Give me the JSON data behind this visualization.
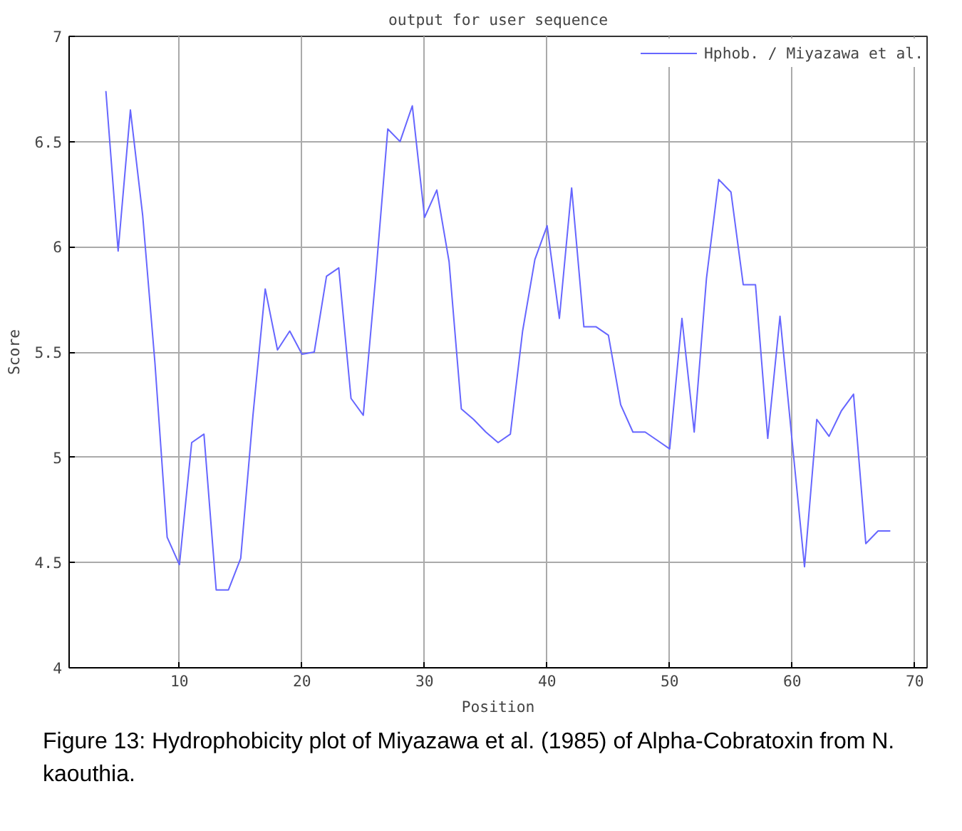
{
  "chart_data": {
    "type": "line",
    "title": "output for user sequence",
    "xlabel": "Position",
    "ylabel": "Score",
    "x": [
      4,
      5,
      6,
      7,
      8,
      9,
      10,
      11,
      12,
      13,
      14,
      15,
      16,
      17,
      18,
      19,
      20,
      21,
      22,
      23,
      24,
      25,
      26,
      27,
      28,
      29,
      30,
      31,
      32,
      33,
      34,
      35,
      36,
      37,
      38,
      39,
      40,
      41,
      42,
      43,
      44,
      45,
      46,
      47,
      48,
      49,
      50,
      51,
      52,
      53,
      54,
      55,
      56,
      57,
      58,
      59,
      60,
      61,
      62,
      63,
      64,
      65,
      66,
      67,
      68
    ],
    "series": [
      {
        "name": "Hphob. / Miyazawa et al.",
        "color": "#6666ff",
        "values": [
          6.74,
          5.98,
          6.65,
          6.15,
          5.45,
          4.62,
          4.49,
          5.07,
          5.11,
          4.37,
          4.37,
          4.52,
          5.2,
          5.8,
          5.51,
          5.6,
          5.49,
          5.5,
          5.86,
          5.9,
          5.28,
          5.2,
          5.85,
          6.56,
          6.5,
          6.67,
          6.14,
          6.27,
          5.93,
          5.23,
          5.18,
          5.12,
          5.07,
          5.11,
          5.6,
          5.94,
          6.1,
          5.66,
          6.28,
          5.62,
          5.62,
          5.58,
          5.25,
          5.12,
          5.12,
          5.08,
          5.04,
          5.66,
          5.12,
          5.85,
          6.32,
          6.26,
          5.82,
          5.82,
          5.09,
          5.67,
          5.07,
          4.48,
          5.18,
          5.1,
          5.22,
          5.3,
          4.59,
          4.65,
          4.65
        ]
      }
    ],
    "xlim": [
      1,
      71
    ],
    "ylim": [
      4,
      7
    ],
    "xticks": [
      10,
      20,
      30,
      40,
      50,
      60,
      70
    ],
    "yticks": [
      4,
      4.5,
      5,
      5.5,
      6,
      6.5,
      7
    ],
    "grid": true,
    "legend": "top right",
    "marker": "none",
    "line_style": "solid",
    "annotations": [
      "Figure 13: Hydrophobicity plot of Miyazawa et al. (1985) of Alpha-Cobratoxin from N. kaouthia."
    ]
  }
}
